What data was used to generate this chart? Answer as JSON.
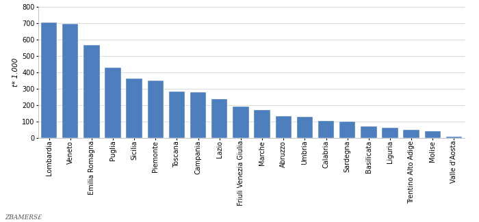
{
  "categories": [
    "Lombardia",
    "Veneto",
    "Emilia Romagna",
    "Puglia",
    "Sicilia",
    "Piemonte",
    "Toscana",
    "Campania",
    "Lazio",
    "Friuli Venezia Giulia",
    "Marche",
    "Abruzzo",
    "Umbria",
    "Calabria",
    "Sardegna",
    "Basilicata",
    "Liguria",
    "Trentino Alto Adige",
    "Molise",
    "Valle d'Aosta"
  ],
  "values": [
    705,
    695,
    565,
    428,
    360,
    348,
    283,
    276,
    237,
    190,
    170,
    133,
    128,
    103,
    97,
    68,
    60,
    50,
    40,
    5
  ],
  "bar_color": "#4d7fbe",
  "bar_edge_color": "#ffffff",
  "ylabel": "t* 1.000",
  "ylim": [
    0,
    800
  ],
  "yticks": [
    0,
    100,
    200,
    300,
    400,
    500,
    600,
    700,
    800
  ],
  "background_color": "#ffffff",
  "grid_color": "#cccccc",
  "source_text": "ZBAMERS£",
  "axis_fontsize": 7.5,
  "tick_fontsize": 7,
  "source_fontsize": 6.5
}
